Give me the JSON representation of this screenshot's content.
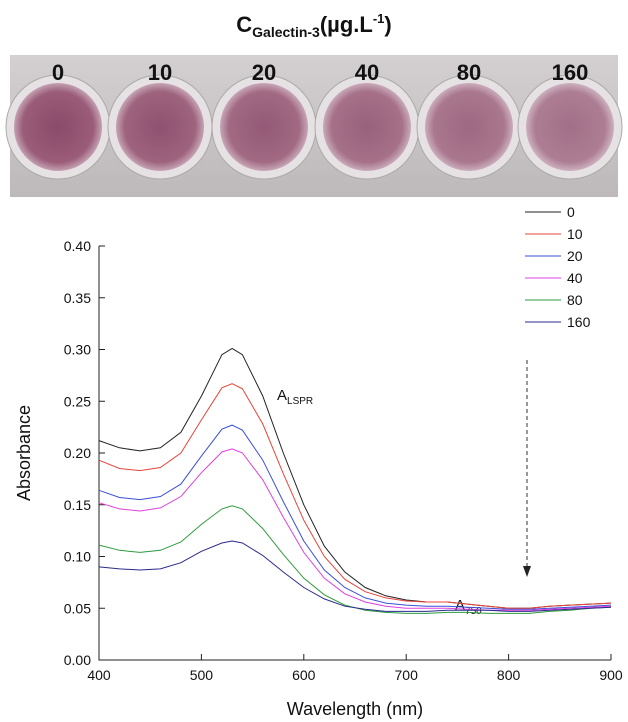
{
  "photo": {
    "title": {
      "base": "C",
      "sub": "Galectin-3",
      "unit": "(µg.L",
      "sup": "-1",
      "close": ")"
    },
    "labels": [
      "0",
      "10",
      "20",
      "40",
      "80",
      "160"
    ]
  },
  "chart_data": {
    "type": "line",
    "x_label": "Wavelength (nm)",
    "y_label": "Absorbance",
    "annotations": [
      {
        "base": "A",
        "sub": "LSPR"
      },
      {
        "base": "A",
        "sub": "750"
      }
    ],
    "x": [
      400,
      420,
      440,
      460,
      480,
      500,
      520,
      530,
      540,
      560,
      580,
      600,
      620,
      640,
      660,
      680,
      700,
      720,
      740,
      760,
      780,
      800,
      820,
      840,
      860,
      880,
      900
    ],
    "series": [
      {
        "name": "0",
        "color": "#222222",
        "values": [
          0.212,
          0.205,
          0.202,
          0.205,
          0.22,
          0.255,
          0.295,
          0.301,
          0.295,
          0.255,
          0.2,
          0.15,
          0.11,
          0.085,
          0.07,
          0.062,
          0.058,
          0.056,
          0.056,
          0.054,
          0.052,
          0.05,
          0.05,
          0.052,
          0.053,
          0.054,
          0.055
        ]
      },
      {
        "name": "10",
        "color": "#e8443a",
        "values": [
          0.193,
          0.185,
          0.183,
          0.186,
          0.2,
          0.232,
          0.263,
          0.267,
          0.262,
          0.228,
          0.18,
          0.135,
          0.1,
          0.078,
          0.066,
          0.06,
          0.057,
          0.056,
          0.056,
          0.054,
          0.052,
          0.05,
          0.05,
          0.052,
          0.053,
          0.054,
          0.055
        ]
      },
      {
        "name": "20",
        "color": "#3a4fd6",
        "values": [
          0.164,
          0.157,
          0.155,
          0.158,
          0.17,
          0.197,
          0.223,
          0.227,
          0.222,
          0.193,
          0.153,
          0.115,
          0.087,
          0.07,
          0.06,
          0.055,
          0.053,
          0.052,
          0.052,
          0.051,
          0.05,
          0.049,
          0.049,
          0.05,
          0.051,
          0.052,
          0.053
        ]
      },
      {
        "name": "40",
        "color": "#e040e0",
        "values": [
          0.152,
          0.146,
          0.144,
          0.147,
          0.158,
          0.181,
          0.201,
          0.204,
          0.2,
          0.174,
          0.138,
          0.104,
          0.079,
          0.064,
          0.056,
          0.052,
          0.05,
          0.05,
          0.05,
          0.049,
          0.048,
          0.048,
          0.048,
          0.049,
          0.05,
          0.051,
          0.052
        ]
      },
      {
        "name": "80",
        "color": "#2e9a3e",
        "values": [
          0.111,
          0.106,
          0.104,
          0.106,
          0.114,
          0.131,
          0.146,
          0.149,
          0.146,
          0.127,
          0.102,
          0.079,
          0.063,
          0.053,
          0.048,
          0.046,
          0.045,
          0.045,
          0.046,
          0.046,
          0.045,
          0.045,
          0.045,
          0.047,
          0.048,
          0.05,
          0.051
        ]
      },
      {
        "name": "160",
        "color": "#2a2a8c",
        "values": [
          0.09,
          0.088,
          0.087,
          0.088,
          0.094,
          0.105,
          0.113,
          0.115,
          0.113,
          0.101,
          0.085,
          0.07,
          0.059,
          0.052,
          0.049,
          0.047,
          0.047,
          0.047,
          0.048,
          0.048,
          0.048,
          0.047,
          0.047,
          0.048,
          0.049,
          0.05,
          0.051
        ]
      }
    ],
    "xlim": [
      400,
      900
    ],
    "xticks": [
      400,
      500,
      600,
      700,
      800,
      900
    ],
    "ylim": [
      0,
      0.4
    ],
    "yticks": [
      {
        "value": 0,
        "label": "0.00"
      },
      {
        "value": 0.05,
        "label": "0.05"
      },
      {
        "value": 0.1,
        "label": "0.10"
      },
      {
        "value": 0.15,
        "label": "0.15"
      },
      {
        "value": 0.2,
        "label": "0.20"
      },
      {
        "value": 0.25,
        "label": "0.25"
      },
      {
        "value": 0.3,
        "label": "0.30"
      },
      {
        "value": 0.35,
        "label": "0.35"
      },
      {
        "value": 0.4,
        "label": "0.40"
      }
    ],
    "grid": false,
    "legend": "top-right"
  }
}
